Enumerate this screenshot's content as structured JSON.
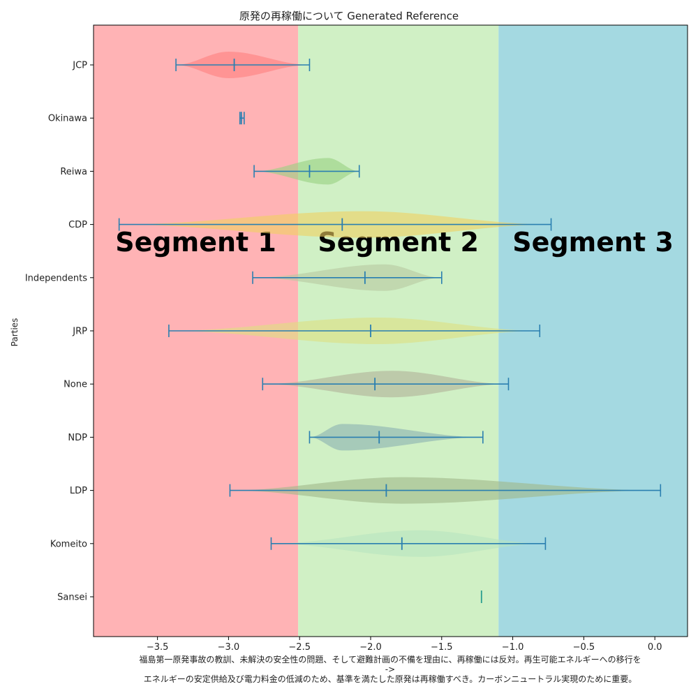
{
  "chart_data": {
    "type": "violin",
    "title": "原発の再稼働について Generated Reference",
    "ylabel": "Parties",
    "xlabel_lines": [
      "福島第一原発事故の教訓、未解決の安全性の問題、そして避難計画の不備を理由に、再稼働には反対。再生可能エネルギーへの移行を",
      "->",
      "エネルギーの安定供給及び電力料金の低減のため、基準を満たした原発は再稼働すべき。カーボンニュートラル実現のために重要。"
    ],
    "xlim": [
      -3.95,
      0.23
    ],
    "xticks": [
      -3.5,
      -3.0,
      -2.5,
      -2.0,
      -1.5,
      -1.0,
      -0.5,
      0.0
    ],
    "xtick_labels": [
      "−3.5",
      "−3.0",
      "−2.5",
      "−2.0",
      "−1.5",
      "−1.0",
      "−0.5",
      "0.0"
    ],
    "segments": [
      {
        "label": "Segment 1",
        "from": -3.95,
        "to": -2.51,
        "color": "#ffb3b5"
      },
      {
        "label": "Segment 2",
        "from": -2.51,
        "to": -1.1,
        "color": "#d0f0c5"
      },
      {
        "label": "Segment 3",
        "from": -1.1,
        "to": 0.23,
        "color": "#a4d9e1"
      }
    ],
    "parties": [
      {
        "name": "JCP",
        "min": -3.37,
        "median": -2.96,
        "max": -2.43,
        "width": 0.5,
        "peak": -3.0,
        "color": "#ff7f7f"
      },
      {
        "name": "Okinawa",
        "min": -2.92,
        "median": -2.91,
        "max": -2.89,
        "width": 0.14,
        "peak": -2.91,
        "color": "#c8a0c8"
      },
      {
        "name": "Reiwa",
        "min": -2.82,
        "median": -2.43,
        "max": -2.08,
        "width": 0.5,
        "peak": -2.3,
        "color": "#98d080"
      },
      {
        "name": "CDP",
        "min": -3.77,
        "median": -2.2,
        "max": -0.73,
        "width": 0.5,
        "peak": -2.05,
        "color": "#f0d060"
      },
      {
        "name": "Independents",
        "min": -2.83,
        "median": -2.04,
        "max": -1.5,
        "width": 0.5,
        "peak": -1.9,
        "color": "#b8c8a0"
      },
      {
        "name": "JRP",
        "min": -3.42,
        "median": -2.0,
        "max": -0.81,
        "width": 0.5,
        "peak": -1.95,
        "color": "#dde080"
      },
      {
        "name": "None",
        "min": -2.76,
        "median": -1.97,
        "max": -1.03,
        "width": 0.5,
        "peak": -1.85,
        "color": "#b0b098"
      },
      {
        "name": "NDP",
        "min": -2.43,
        "median": -1.94,
        "max": -1.21,
        "width": 0.5,
        "peak": -2.2,
        "color": "#8ab0b0"
      },
      {
        "name": "LDP",
        "min": -2.99,
        "median": -1.89,
        "max": 0.04,
        "width": 0.5,
        "peak": -1.78,
        "color": "#a0b888"
      },
      {
        "name": "Komeito",
        "min": -2.7,
        "median": -1.78,
        "max": -0.77,
        "width": 0.5,
        "peak": -1.65,
        "color": "#b8e4c0"
      },
      {
        "name": "Sansei",
        "min": -1.22,
        "median": -1.22,
        "max": -1.22,
        "width": 0.0,
        "peak": -1.22,
        "color": "#2a9d8f"
      }
    ]
  }
}
